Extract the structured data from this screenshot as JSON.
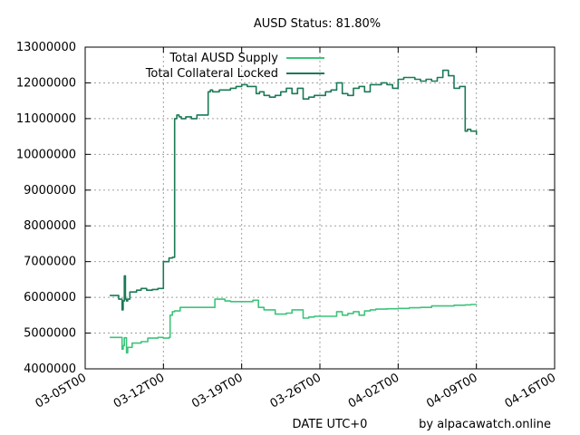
{
  "chart_data": {
    "type": "line",
    "title": "AUSD Status: 81.80%",
    "xlabel": "DATE UTC+0",
    "credit": "by alpacawatch.online",
    "ylim": [
      4000000,
      13000000
    ],
    "xlim": [
      0,
      42
    ],
    "y_ticks": [
      4000000,
      5000000,
      6000000,
      7000000,
      8000000,
      9000000,
      10000000,
      11000000,
      12000000,
      13000000
    ],
    "y_tick_labels": [
      "4000000",
      "5000000",
      "6000000",
      "7000000",
      "8000000",
      "9000000",
      "10000000",
      "11000000",
      "12000000",
      "13000000"
    ],
    "x_ticks": [
      0,
      7,
      14,
      21,
      28,
      35,
      42
    ],
    "x_tick_labels": [
      "03-05T00",
      "03-12T00",
      "03-19T00",
      "03-26T00",
      "04-02T00",
      "04-09T00",
      "04-16T00"
    ],
    "grid": true,
    "legend_position": "top-left",
    "series": [
      {
        "name": "Total AUSD Supply",
        "color": "#3cc47a",
        "x": [
          2.2,
          3.0,
          3.3,
          3.4,
          3.5,
          3.7,
          3.8,
          4.2,
          5.0,
          5.6,
          6.0,
          6.5,
          7.0,
          7.5,
          7.6,
          7.8,
          8.0,
          8.5,
          9.0,
          9.5,
          10.0,
          10.5,
          11.0,
          11.5,
          11.6,
          12.0,
          12.5,
          13.0,
          13.5,
          14.0,
          14.5,
          15.0,
          15.5,
          16.0,
          16.5,
          17.0,
          17.5,
          18.0,
          18.5,
          19.0,
          19.5,
          20.0,
          20.5,
          21.0,
          22.0,
          22.5,
          23.0,
          23.5,
          24.0,
          24.5,
          25.0,
          25.5,
          26.0,
          26.5,
          27.0,
          28.0,
          29.0,
          30.0,
          31.0,
          32.0,
          33.0,
          34.0,
          34.5,
          35.0
        ],
        "y": [
          4880000,
          4880000,
          4550000,
          4650000,
          4870000,
          4450000,
          4600000,
          4720000,
          4760000,
          4860000,
          4860000,
          4880000,
          4860000,
          4880000,
          5500000,
          5600000,
          5620000,
          5720000,
          5720000,
          5720000,
          5720000,
          5720000,
          5720000,
          5720000,
          5950000,
          5950000,
          5900000,
          5880000,
          5880000,
          5880000,
          5880000,
          5920000,
          5720000,
          5650000,
          5650000,
          5530000,
          5530000,
          5560000,
          5650000,
          5650000,
          5420000,
          5450000,
          5470000,
          5470000,
          5470000,
          5600000,
          5500000,
          5550000,
          5600000,
          5500000,
          5620000,
          5650000,
          5670000,
          5670000,
          5680000,
          5690000,
          5710000,
          5720000,
          5760000,
          5760000,
          5780000,
          5790000,
          5800000,
          5810000
        ]
      },
      {
        "name": "Total Collateral Locked",
        "color": "#1b7a55",
        "x": [
          2.2,
          3.0,
          3.3,
          3.4,
          3.5,
          3.6,
          3.7,
          3.8,
          4.0,
          4.3,
          4.6,
          5.0,
          5.5,
          6.0,
          6.5,
          7.0,
          7.5,
          7.8,
          8.0,
          8.2,
          8.4,
          8.6,
          9.0,
          9.5,
          10.0,
          10.5,
          11.0,
          11.2,
          11.4,
          11.6,
          12.0,
          12.5,
          13.0,
          13.5,
          14.0,
          14.5,
          15.0,
          15.3,
          15.6,
          16.0,
          16.5,
          17.0,
          17.5,
          18.0,
          18.5,
          19.0,
          19.5,
          20.0,
          20.5,
          21.0,
          21.5,
          22.0,
          22.5,
          23.0,
          23.5,
          24.0,
          24.5,
          25.0,
          25.5,
          26.0,
          26.5,
          27.0,
          27.5,
          28.0,
          28.5,
          29.0,
          29.5,
          30.0,
          30.5,
          31.0,
          31.5,
          32.0,
          32.5,
          33.0,
          33.5,
          34.0,
          34.2,
          34.5,
          35.0
        ],
        "y": [
          6050000,
          5950000,
          5650000,
          5900000,
          6600000,
          5950000,
          5900000,
          5950000,
          6150000,
          6150000,
          6200000,
          6250000,
          6200000,
          6220000,
          6250000,
          7000000,
          7100000,
          7120000,
          11000000,
          11100000,
          11050000,
          11000000,
          11050000,
          11000000,
          11100000,
          11100000,
          11750000,
          11800000,
          11750000,
          11750000,
          11800000,
          11800000,
          11850000,
          11900000,
          11950000,
          11900000,
          11900000,
          11700000,
          11750000,
          11650000,
          11600000,
          11650000,
          11750000,
          11850000,
          11700000,
          11850000,
          11550000,
          11600000,
          11650000,
          11650000,
          11750000,
          11800000,
          12000000,
          11700000,
          11650000,
          11850000,
          11900000,
          11750000,
          11950000,
          11950000,
          12000000,
          11950000,
          11850000,
          12100000,
          12150000,
          12150000,
          12100000,
          12050000,
          12100000,
          12050000,
          12150000,
          12350000,
          12200000,
          11850000,
          11900000,
          10650000,
          10700000,
          10650000,
          10550000
        ]
      }
    ]
  }
}
